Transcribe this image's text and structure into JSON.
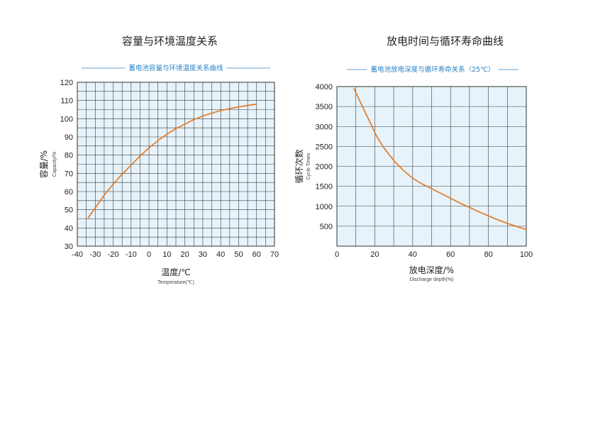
{
  "page": {
    "left_title": "容量与环境温度关系",
    "right_title": "放电时间与循环寿命曲线"
  },
  "chart_data": [
    {
      "type": "line",
      "title": "蓄电池容量与环境温度关系曲线",
      "xlabel": "温度/℃",
      "xlabel_en": "Temperature(℃)",
      "ylabel": "容量/%",
      "ylabel_en": "Capacity/%",
      "xlim": [
        -40,
        70
      ],
      "ylim": [
        30,
        120
      ],
      "xticks": [
        -40,
        -30,
        -20,
        -10,
        0,
        10,
        20,
        30,
        40,
        50,
        60,
        70
      ],
      "yticks": [
        30,
        40,
        50,
        60,
        70,
        80,
        90,
        100,
        110,
        120
      ],
      "x_grid_step": 5,
      "y_grid_step": 5,
      "grid": true,
      "series": [
        {
          "x": [
            -34,
            -30,
            -25,
            -20,
            -15,
            -10,
            -5,
            0,
            5,
            10,
            15,
            20,
            25,
            30,
            35,
            40,
            45,
            50,
            55,
            60
          ],
          "y": [
            45.5,
            51,
            58,
            64,
            69.5,
            74.5,
            79.5,
            84,
            88,
            91.5,
            94.5,
            97,
            99.5,
            101.5,
            103,
            104.5,
            105.5,
            106.5,
            107.3,
            108
          ]
        }
      ]
    },
    {
      "type": "line",
      "title": "蓄电池放电深度与循环寿命关系（25℃）",
      "xlabel": "放电深度/%",
      "xlabel_en": "Discharge depth(%)",
      "ylabel": "循环次数",
      "ylabel_en": "Cycle Times",
      "xlim": [
        0,
        100
      ],
      "ylim": [
        0,
        4000
      ],
      "xticks": [
        0,
        20,
        40,
        60,
        80,
        100
      ],
      "yticks": [
        500,
        1000,
        1500,
        2000,
        2500,
        3000,
        3500,
        4000
      ],
      "x_grid_step": 10,
      "y_grid_step": 500,
      "grid": true,
      "series": [
        {
          "x": [
            9,
            12,
            15,
            18,
            21,
            25,
            30,
            35,
            40,
            45,
            50,
            55,
            60,
            65,
            70,
            75,
            80,
            85,
            90,
            95,
            100
          ],
          "y": [
            3950,
            3650,
            3350,
            3050,
            2750,
            2450,
            2150,
            1900,
            1700,
            1560,
            1440,
            1320,
            1200,
            1080,
            970,
            860,
            760,
            660,
            570,
            490,
            420
          ]
        }
      ]
    }
  ]
}
